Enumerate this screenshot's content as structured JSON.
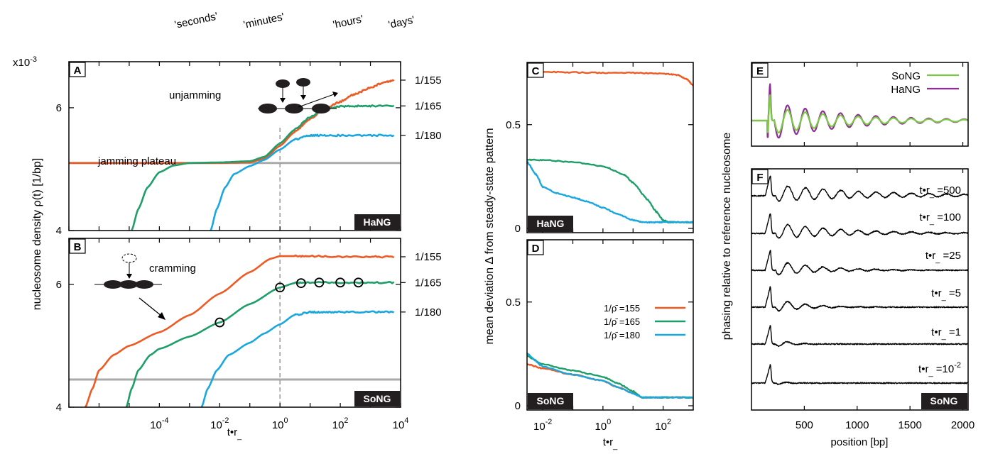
{
  "figure": {
    "time_scale_labels": [
      "'seconds'",
      "'minutes'",
      "'hours'",
      "'days'"
    ]
  },
  "chart_data": [
    {
      "panel": "A",
      "type": "line",
      "badge": "HaNG",
      "ylabel": "nucleosome density ρ(t) [1/bp]",
      "y_multiplier": "x10",
      "y_multiplier_exp": "-3",
      "x_log": true,
      "xlim": [
        1e-07,
        10000
      ],
      "ylim": [
        4.0,
        6.75
      ],
      "ytick_labels": [
        "4",
        "6"
      ],
      "right_labels": [
        {
          "text": "1/155",
          "y": 6.45
        },
        {
          "text": "1/165",
          "y": 6.03
        },
        {
          "text": "1/180",
          "y": 5.55
        }
      ],
      "annotations": [
        "unjamming",
        "jamming plateau"
      ],
      "reference_line": 5.1,
      "series": [
        {
          "color": "#ee5a24",
          "x": [
            1e-07,
            0.001,
            0.01,
            0.1,
            0.3,
            1,
            3,
            10,
            30,
            100,
            300,
            1000,
            3000,
            6000
          ],
          "y": [
            5.1,
            5.1,
            5.1,
            5.11,
            5.17,
            5.38,
            5.6,
            5.82,
            5.98,
            6.1,
            6.22,
            6.33,
            6.42,
            6.45
          ]
        },
        {
          "color": "#1f9e6a",
          "x": [
            1.2e-05,
            2e-05,
            4e-05,
            0.0001,
            0.0003,
            0.001,
            0.01,
            0.1,
            0.3,
            1,
            3,
            10,
            30,
            100,
            300,
            1000,
            6000
          ],
          "y": [
            4.0,
            4.35,
            4.7,
            4.95,
            5.06,
            5.1,
            5.11,
            5.13,
            5.2,
            5.42,
            5.64,
            5.85,
            5.97,
            6.02,
            6.03,
            6.03,
            6.03
          ]
        },
        {
          "color": "#1aa7e0",
          "x": [
            0.005,
            0.008,
            0.015,
            0.03,
            0.1,
            0.3,
            1,
            3,
            10,
            30,
            100,
            1000,
            6000
          ],
          "y": [
            4.0,
            4.35,
            4.7,
            4.92,
            5.05,
            5.15,
            5.32,
            5.48,
            5.55,
            5.55,
            5.55,
            5.55,
            5.55
          ]
        }
      ]
    },
    {
      "panel": "B",
      "type": "line",
      "badge": "SoNG",
      "xlabel": "t•r_",
      "x_log": true,
      "xlim": [
        1e-07,
        10000
      ],
      "ylim": [
        4.0,
        6.75
      ],
      "ytick_labels": [
        "4",
        "6"
      ],
      "xtick_labels": [
        {
          "base": "10",
          "exp": "-4",
          "x": 0.0001
        },
        {
          "base": "10",
          "exp": "-2",
          "x": 0.01
        },
        {
          "base": "10",
          "exp": "0",
          "x": 1
        },
        {
          "base": "10",
          "exp": "2",
          "x": 100
        },
        {
          "base": "10",
          "exp": "4",
          "x": 10000
        }
      ],
      "right_labels": [
        {
          "text": "1/155",
          "y": 6.45
        },
        {
          "text": "1/165",
          "y": 6.03
        },
        {
          "text": "1/180",
          "y": 5.55
        }
      ],
      "annotations": [
        "cramming"
      ],
      "reference_line": 4.45,
      "markers": {
        "x": [
          0.01,
          1,
          5,
          20,
          100,
          400
        ],
        "y": [
          5.38,
          5.95,
          6.02,
          6.03,
          6.03,
          6.03
        ]
      },
      "series": [
        {
          "color": "#ee5a24",
          "x": [
            3.5e-07,
            6e-07,
            1e-06,
            3e-06,
            1e-05,
            0.0001,
            0.001,
            0.01,
            0.1,
            0.5,
            1,
            3,
            10,
            100,
            1000,
            6000
          ],
          "y": [
            4.0,
            4.3,
            4.6,
            4.85,
            5.0,
            5.22,
            5.5,
            5.85,
            6.2,
            6.42,
            6.46,
            6.46,
            6.46,
            6.45,
            6.45,
            6.45
          ]
        },
        {
          "color": "#1f9e6a",
          "x": [
            8e-06,
            1.2e-05,
            2e-05,
            5e-05,
            0.0001,
            0.001,
            0.01,
            0.1,
            1,
            3,
            10,
            100,
            1000,
            6000
          ],
          "y": [
            4.0,
            4.3,
            4.6,
            4.85,
            4.95,
            5.15,
            5.38,
            5.68,
            5.95,
            6.02,
            6.03,
            6.03,
            6.03,
            6.03
          ]
        },
        {
          "color": "#1aa7e0",
          "x": [
            0.0025,
            0.004,
            0.008,
            0.02,
            0.1,
            0.3,
            1,
            3,
            10,
            30,
            100,
            1000,
            6000
          ],
          "y": [
            4.0,
            4.3,
            4.6,
            4.85,
            5.05,
            5.2,
            5.35,
            5.5,
            5.55,
            5.55,
            5.55,
            5.55,
            5.55
          ]
        }
      ]
    },
    {
      "panel": "C",
      "type": "line",
      "badge": "HaNG",
      "ylabel": "mean deviation Δ from steady-state pattern",
      "x_log": true,
      "xlim": [
        0.003,
        1000
      ],
      "ylim": [
        0,
        0.8
      ],
      "ytick_labels": [
        {
          "text": "0",
          "v": 0
        },
        {
          "text": "0.5",
          "v": 0.5
        }
      ],
      "series": [
        {
          "color": "#ee5a24",
          "x": [
            0.003,
            0.01,
            0.1,
            1,
            10,
            100,
            300,
            600,
            1000
          ],
          "y": [
            0.755,
            0.755,
            0.752,
            0.75,
            0.75,
            0.745,
            0.74,
            0.72,
            0.69
          ]
        },
        {
          "color": "#1f9e6a",
          "x": [
            0.003,
            0.01,
            0.1,
            1,
            5,
            10,
            30,
            60,
            100,
            150,
            200,
            1000
          ],
          "y": [
            0.33,
            0.33,
            0.32,
            0.3,
            0.26,
            0.22,
            0.14,
            0.08,
            0.04,
            0.03,
            0.03,
            0.03
          ]
        },
        {
          "color": "#1aa7e0",
          "x": [
            0.003,
            0.006,
            0.01,
            0.03,
            0.1,
            0.3,
            1,
            3,
            10,
            20,
            50,
            100,
            1000
          ],
          "y": [
            0.32,
            0.26,
            0.2,
            0.17,
            0.15,
            0.13,
            0.1,
            0.07,
            0.04,
            0.03,
            0.03,
            0.03,
            0.03
          ]
        }
      ]
    },
    {
      "panel": "D",
      "type": "line",
      "badge": "SoNG",
      "xlabel": "t•r_",
      "x_log": true,
      "xlim": [
        0.003,
        1000
      ],
      "ylim": [
        0,
        0.8
      ],
      "ytick_labels": [
        {
          "text": "0",
          "v": 0
        },
        {
          "text": "0.5",
          "v": 0.5
        }
      ],
      "xtick_labels": [
        {
          "base": "10",
          "exp": "-2",
          "x": 0.01
        },
        {
          "base": "10",
          "exp": "0",
          "x": 1
        },
        {
          "base": "10",
          "exp": "2",
          "x": 100
        }
      ],
      "legend_position": "right",
      "series": [
        {
          "name": "1/ρ̄ =155",
          "color": "#ee5a24",
          "x": [
            0.003,
            0.01,
            0.1,
            1,
            3,
            10,
            20,
            40,
            100,
            1000
          ],
          "y": [
            0.2,
            0.18,
            0.15,
            0.12,
            0.09,
            0.06,
            0.04,
            0.04,
            0.04,
            0.04
          ]
        },
        {
          "name": "1/ρ̄ =165",
          "color": "#1f9e6a",
          "x": [
            0.003,
            0.01,
            0.1,
            1,
            3,
            10,
            20,
            40,
            100,
            1000
          ],
          "y": [
            0.24,
            0.2,
            0.17,
            0.14,
            0.11,
            0.07,
            0.04,
            0.04,
            0.04,
            0.04
          ]
        },
        {
          "name": "1/ρ̄ =180",
          "color": "#1aa7e0",
          "x": [
            0.003,
            0.01,
            0.1,
            1,
            3,
            10,
            20,
            40,
            100,
            1000
          ],
          "y": [
            0.25,
            0.19,
            0.15,
            0.12,
            0.09,
            0.06,
            0.04,
            0.04,
            0.04,
            0.04
          ]
        }
      ]
    },
    {
      "panel": "E",
      "type": "line",
      "xlim": [
        0,
        2050
      ],
      "legend_position": "top-right",
      "series": [
        {
          "name": "SoNG",
          "color": "#7ac943",
          "kind": "phasing",
          "amplitude_scale": 0.7
        },
        {
          "name": "HaNG",
          "color": "#8e2e94",
          "kind": "phasing",
          "amplitude_scale": 1.0
        }
      ]
    },
    {
      "panel": "F",
      "type": "line",
      "badge": "SoNG",
      "ylabel": "phasing relative to reference nucleosome",
      "xlabel": "position [bp]",
      "xlim": [
        0,
        2050
      ],
      "xtick_labels": [
        {
          "text": "500",
          "x": 500
        },
        {
          "text": "1000",
          "x": 1000
        },
        {
          "text": "1500",
          "x": 1500
        },
        {
          "text": "2000",
          "x": 2000
        }
      ],
      "traces": [
        {
          "label": "t•r_ =500",
          "label_base": "t•r",
          "label_sub": "_",
          "label_value": " =500",
          "decay_bp": 900
        },
        {
          "label": "t•r_ =100",
          "label_base": "t•r",
          "label_sub": "_",
          "label_value": " =100",
          "decay_bp": 650
        },
        {
          "label": "t•r_ =25",
          "label_base": "t•r",
          "label_sub": "_",
          "label_value": " =25",
          "decay_bp": 420
        },
        {
          "label": "t•r_ =5",
          "label_base": "t•r",
          "label_sub": "_",
          "label_value": " =5",
          "decay_bp": 260
        },
        {
          "label": "t•r_ =1",
          "label_base": "t•r",
          "label_sub": "_",
          "label_value": " =1",
          "decay_bp": 130
        },
        {
          "label": "t•r_ =10^-2",
          "label_base": "t•r",
          "label_sub": "_",
          "label_value": " =10",
          "label_exp": "-2",
          "decay_bp": 70
        }
      ]
    }
  ]
}
